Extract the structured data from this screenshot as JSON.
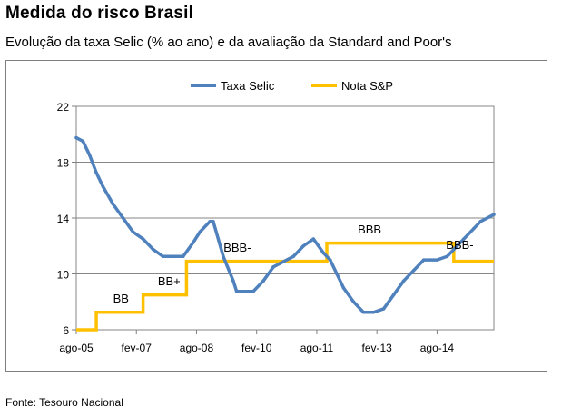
{
  "header": {
    "title": "Medida do risco Brasil",
    "subtitle": "Evolução da taxa Selic (% ao ano) e da avaliação da Standard and Poor's"
  },
  "footer": {
    "source": "Fonte: Tesouro Nacional"
  },
  "colors": {
    "selic": "#4f81bd",
    "sp": "#ffc000",
    "grid": "#868686",
    "axis": "#7f7f7f"
  },
  "chart_data": {
    "type": "line",
    "title": "Medida do risco Brasil",
    "xlabel": "",
    "ylabel": "",
    "ylim": [
      6,
      22
    ],
    "xlim": [
      2005.583,
      2016.0
    ],
    "y_ticks": [
      6,
      10,
      14,
      18,
      22
    ],
    "x_ticks": [
      {
        "label": "ago-05",
        "x": 2005.583
      },
      {
        "label": "fev-07",
        "x": 2007.083
      },
      {
        "label": "ago-08",
        "x": 2008.583
      },
      {
        "label": "fev-10",
        "x": 2010.083
      },
      {
        "label": "ago-11",
        "x": 2011.583
      },
      {
        "label": "fev-13",
        "x": 2013.083
      },
      {
        "label": "ago-14",
        "x": 2014.583
      }
    ],
    "grid": "horizontal",
    "legend": "top",
    "series": [
      {
        "name": "Taxa Selic",
        "color": "#4f81bd",
        "x": [
          2005.583,
          2005.75,
          2005.917,
          2006.083,
          2006.25,
          2006.5,
          2006.75,
          2007.0,
          2007.25,
          2007.5,
          2007.75,
          2008.0,
          2008.25,
          2008.5,
          2008.667,
          2008.917,
          2009.0,
          2009.25,
          2009.5,
          2009.583,
          2010.0,
          2010.25,
          2010.5,
          2010.667,
          2011.0,
          2011.25,
          2011.5,
          2011.75,
          2011.917,
          2012.083,
          2012.25,
          2012.5,
          2012.75,
          2013.0,
          2013.25,
          2013.5,
          2013.75,
          2014.0,
          2014.25,
          2014.583,
          2014.833,
          2015.0,
          2015.25,
          2015.5,
          2015.667,
          2016.0
        ],
        "values": [
          19.75,
          19.5,
          18.5,
          17.25,
          16.25,
          15.0,
          14.0,
          13.0,
          12.5,
          11.75,
          11.25,
          11.25,
          11.25,
          12.25,
          13.0,
          13.75,
          13.75,
          11.25,
          9.5,
          8.75,
          8.75,
          9.5,
          10.5,
          10.75,
          11.25,
          12.0,
          12.5,
          11.5,
          11.0,
          10.0,
          9.0,
          8.0,
          7.25,
          7.25,
          7.5,
          8.5,
          9.5,
          10.25,
          11.0,
          11.0,
          11.25,
          11.75,
          12.5,
          13.25,
          13.75,
          14.25
        ]
      },
      {
        "name": "Nota S&P",
        "color": "#ffc000",
        "step": true,
        "x": [
          2005.583,
          2006.083,
          2007.25,
          2008.333,
          2011.833,
          2015.0,
          2016.0
        ],
        "values": [
          6.0,
          7.25,
          8.5,
          10.9,
          12.2,
          10.9,
          10.9
        ]
      }
    ],
    "annotations": [
      {
        "text": "BB",
        "x": 2006.7,
        "y": 7.95
      },
      {
        "text": "BB+",
        "x": 2007.9,
        "y": 9.2
      },
      {
        "text": "BBB-",
        "x": 2009.6,
        "y": 11.6
      },
      {
        "text": "BBB",
        "x": 2012.9,
        "y": 12.9
      },
      {
        "text": "BBB-",
        "x": 2015.15,
        "y": 11.8
      }
    ]
  }
}
